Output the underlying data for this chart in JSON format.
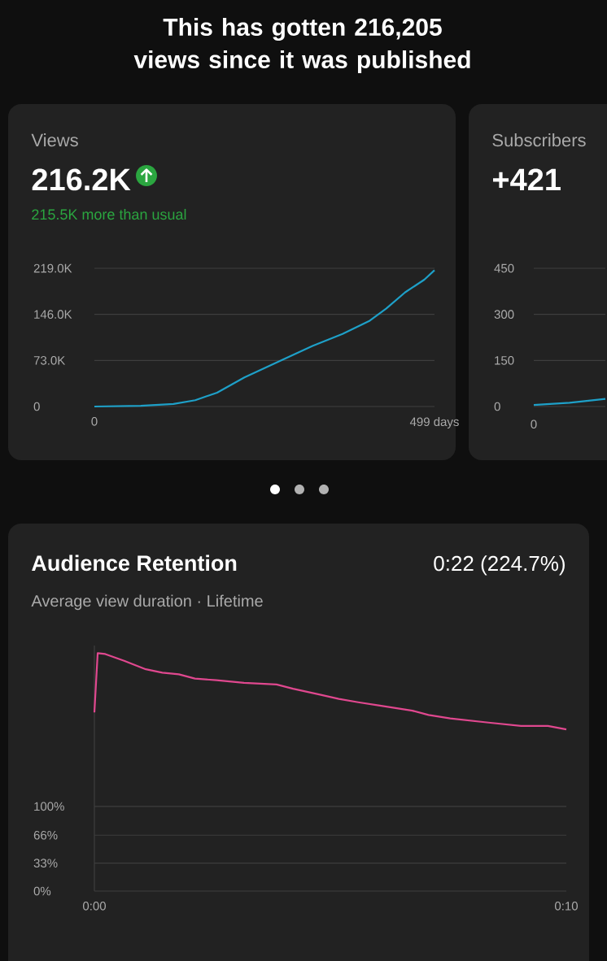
{
  "chart_data": [
    {
      "type": "line",
      "title": "Views",
      "subtitle": "216.2K",
      "annotations": [
        "This has gotten 216,205 views since it was published",
        "215.5K more than usual"
      ],
      "x": [
        0,
        68,
        116,
        148,
        180,
        220,
        276,
        320,
        364,
        404,
        428,
        456,
        484,
        499
      ],
      "values": [
        0,
        1000,
        4000,
        10000,
        22000,
        46000,
        74000,
        96000,
        115000,
        136000,
        155000,
        181000,
        201000,
        216000
      ],
      "color": "#1ea0c8",
      "xlim": [
        0,
        499
      ],
      "ylim": [
        0,
        219000
      ],
      "xticks": [
        0,
        {
          "value": 499,
          "label": "499 days"
        }
      ],
      "yticks": [
        0,
        {
          "value": 73000,
          "label": "73.0K"
        },
        {
          "value": 146000,
          "label": "146.0K"
        },
        {
          "value": 219000,
          "label": "219.0K"
        }
      ],
      "grid": "y"
    },
    {
      "type": "line",
      "title": "Subscribers",
      "subtitle": "+421",
      "annotations": [
        "0"
      ],
      "categories": [
        null,
        null,
        null
      ],
      "values": [
        5,
        12,
        25
      ],
      "color": "#1ea0c8",
      "ylim": [
        0,
        450
      ],
      "yticks": [
        0,
        150,
        300,
        450
      ],
      "grid": "y"
    },
    {
      "type": "line",
      "title": "Audience Retention",
      "subtitle": "Average view duration · Lifetime",
      "annotations": [
        "0:22 (224.7%)"
      ],
      "x": [
        0,
        0.07,
        0.23,
        0.63,
        1.09,
        1.44,
        1.79,
        2.13,
        2.59,
        3.17,
        3.86,
        4.21,
        4.78,
        5.18,
        5.59,
        6.05,
        6.74,
        7.08,
        7.54,
        8.35,
        9.04,
        9.61,
        10
      ],
      "values": [
        211,
        281,
        280,
        272,
        262,
        258,
        256,
        251,
        249,
        246,
        244,
        239,
        232,
        227,
        223,
        219,
        213,
        208,
        204,
        199,
        195,
        195,
        191
      ],
      "color": "#e0488f",
      "xlim": [
        0,
        10
      ],
      "ylim": [
        0,
        290
      ],
      "xticks": [
        {
          "value": 0,
          "label": "0:00"
        },
        {
          "value": 10,
          "label": "0:10"
        }
      ],
      "yticks": [
        {
          "value": 0,
          "label": "0%"
        },
        {
          "value": 33,
          "label": "33%"
        },
        {
          "value": 66,
          "label": "66%"
        },
        {
          "value": 100,
          "label": "100%"
        }
      ],
      "grid": "y"
    }
  ]
}
